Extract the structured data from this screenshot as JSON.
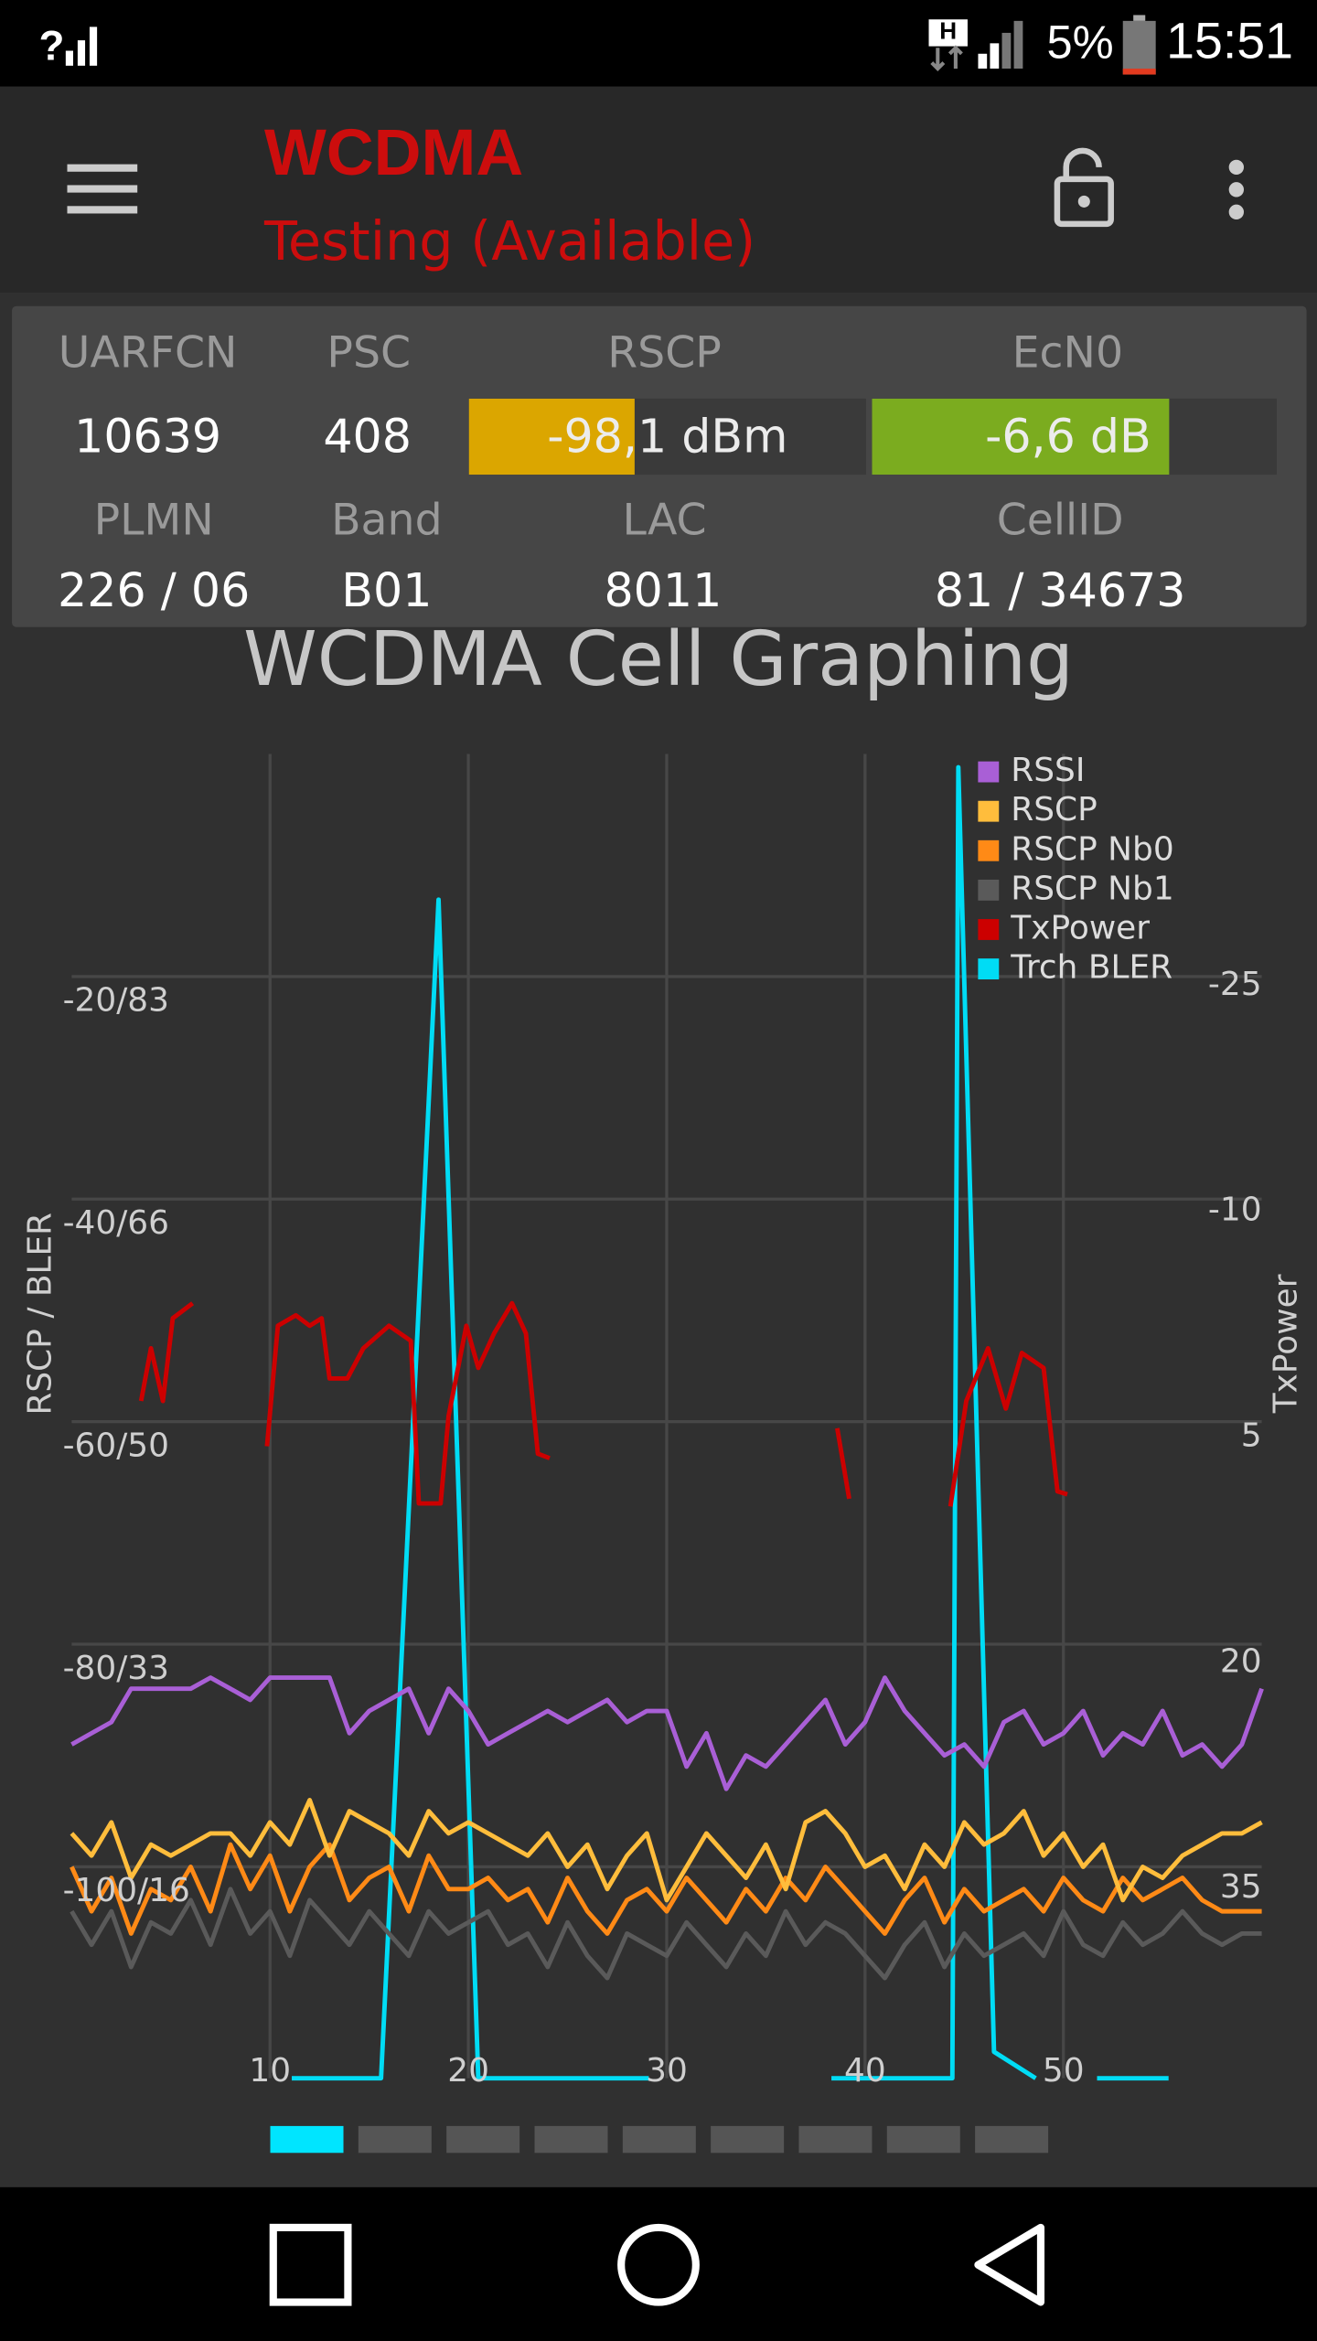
{
  "status_bar": {
    "network": "H",
    "battery": "5%",
    "time": "15:51"
  },
  "app_bar": {
    "title": "WCDMA",
    "subtitle": "Testing (Available)"
  },
  "cell_info": {
    "row1": {
      "labels": [
        "UARFCN",
        "PSC",
        "RSCP",
        "EcN0"
      ],
      "values": [
        "10639",
        "408",
        "-98,1 dBm",
        "-6,6 dB"
      ]
    },
    "row2": {
      "labels": [
        "PLMN",
        "Band",
        "LAC",
        "CellID"
      ],
      "values": [
        "226 / 06",
        "B01",
        "8011",
        "81 / 34673"
      ]
    }
  },
  "chart_data": {
    "type": "line",
    "title": "WCDMA Cell Graphing",
    "y_label": "RSCP / BLER",
    "y2_label": "TxPower",
    "x": [
      0,
      1,
      2,
      3,
      4,
      5,
      6,
      7,
      8,
      9,
      10,
      11,
      12,
      13,
      14,
      15,
      16,
      17,
      18,
      19,
      20,
      21,
      22,
      23,
      24,
      25,
      26,
      27,
      28,
      29,
      30,
      31,
      32,
      33,
      34,
      35,
      36,
      37,
      38,
      39,
      40,
      41,
      42,
      43,
      44,
      45,
      46,
      47,
      48,
      49,
      50,
      51,
      52,
      53,
      54,
      55,
      56,
      57,
      58,
      59,
      60
    ],
    "xlim": [
      0,
      60
    ],
    "xticks": [
      10,
      20,
      30,
      40,
      50
    ],
    "ylim": [
      -119,
      0
    ],
    "yticks": [
      {
        "value": -20,
        "label": "-20/83"
      },
      {
        "value": -40,
        "label": "-40/66"
      },
      {
        "value": -60,
        "label": "-60/50"
      },
      {
        "value": -80,
        "label": "-80/33"
      },
      {
        "value": -100,
        "label": "-100/16"
      }
    ],
    "y2lim": [
      48,
      -40
    ],
    "y2ticks": [
      -25,
      -10,
      5,
      20,
      35
    ],
    "bler_lim": [
      0,
      100
    ],
    "grid": true,
    "legend": "top-right",
    "series": [
      {
        "name": "RSSI",
        "color": "#a95fd6",
        "values": [
          -89,
          -88,
          -87,
          -84,
          -84,
          -84,
          -84,
          -83,
          -84,
          -85,
          -83,
          -83,
          -83,
          -83,
          -88,
          -86,
          -85,
          -84,
          -88,
          -84,
          -86,
          -89,
          -88,
          -87,
          -86,
          -87,
          -86,
          -85,
          -87,
          -86,
          -86,
          -91,
          -88,
          -93,
          -90,
          -91,
          -89,
          -87,
          -85,
          -89,
          -87,
          -83,
          -86,
          -88,
          -90,
          -89,
          -91,
          -87,
          -86,
          -89,
          -88,
          -86,
          -90,
          -88,
          -89,
          -86,
          -90,
          -89,
          -91,
          -89,
          -84
        ]
      },
      {
        "name": "RSCP",
        "color": "#ffbd3c",
        "values": [
          -97,
          -99,
          -96,
          -101,
          -98,
          -99,
          -98,
          -97,
          -97,
          -99,
          -96,
          -98,
          -94,
          -99,
          -95,
          -96,
          -97,
          -99,
          -95,
          -97,
          -96,
          -97,
          -98,
          -99,
          -97,
          -100,
          -98,
          -102,
          -99,
          -97,
          -103,
          -100,
          -97,
          -99,
          -101,
          -98,
          -102,
          -96,
          -95,
          -97,
          -100,
          -99,
          -102,
          -98,
          -100,
          -96,
          -98,
          -97,
          -95,
          -99,
          -97,
          -100,
          -98,
          -103,
          -100,
          -101,
          -99,
          -98,
          -97,
          -97,
          -96
        ]
      },
      {
        "name": "RSCP Nb0",
        "color": "#ff8a16",
        "values": [
          -100,
          -104,
          -101,
          -106,
          -102,
          -103,
          -100,
          -104,
          -98,
          -102,
          -99,
          -104,
          -100,
          -98,
          -103,
          -101,
          -100,
          -104,
          -99,
          -102,
          -102,
          -101,
          -103,
          -102,
          -105,
          -101,
          -104,
          -106,
          -103,
          -102,
          -104,
          -101,
          -103,
          -105,
          -102,
          -104,
          -101,
          -103,
          -100,
          -102,
          -104,
          -106,
          -103,
          -101,
          -105,
          -102,
          -104,
          -103,
          -102,
          -104,
          -101,
          -103,
          -104,
          -101,
          -103,
          -102,
          -101,
          -103,
          -104,
          -104,
          -104
        ]
      },
      {
        "name": "RSCP Nb1",
        "color": "#5a5a5a",
        "values": [
          -104,
          -107,
          -104,
          -109,
          -105,
          -106,
          -103,
          -107,
          -102,
          -106,
          -104,
          -108,
          -103,
          -105,
          -107,
          -104,
          -106,
          -108,
          -104,
          -106,
          -105,
          -104,
          -107,
          -106,
          -109,
          -105,
          -108,
          -110,
          -106,
          -107,
          -108,
          -105,
          -107,
          -109,
          -106,
          -108,
          -104,
          -107,
          -105,
          -106,
          -108,
          -110,
          -107,
          -105,
          -109,
          -106,
          -108,
          -107,
          -106,
          -108,
          -104,
          -107,
          -108,
          -105,
          -107,
          -106,
          -104,
          -106,
          -107,
          -106,
          -106
        ]
      },
      {
        "name": "TxPower",
        "color": "#cc0000",
        "axis": "y2",
        "x": [
          3.5,
          4.0,
          4.6,
          5.1,
          6.1,
          8,
          9.85,
          10.4,
          11.3,
          12.0,
          12.6,
          13.0,
          13.9,
          14.7,
          16.0,
          17.1,
          17.5,
          18.6,
          19.0,
          19.9,
          20.5,
          21.3,
          22.2,
          22.9,
          23.5,
          24.1,
          30,
          38.6,
          39.2,
          42,
          44.3,
          45.1,
          46.2,
          47.1,
          47.9,
          49.0,
          49.7,
          50.2
        ],
        "values": [
          3,
          -0.5,
          3,
          -2.5,
          -3.5,
          null,
          6,
          -2,
          -2.7,
          -2,
          -2.5,
          1.5,
          1.5,
          -0.5,
          -2,
          -1,
          9.8,
          9.8,
          4,
          -2,
          0.8,
          -1.5,
          -3.5,
          -1.5,
          6.5,
          6.8,
          null,
          4.8,
          9.5,
          null,
          10,
          3,
          -0.5,
          3.5,
          -0.2,
          0.8,
          9,
          9.2
        ]
      },
      {
        "name": "Trch BLER",
        "color": "#00dcf5",
        "axis": "bler",
        "x": [
          11.1,
          15.6,
          18.5,
          20.5,
          29.1,
          33,
          38.3,
          44.4,
          44.7,
          46.5,
          48.6,
          50,
          51.7,
          55.3
        ],
        "values": [
          0,
          0,
          89,
          0,
          0,
          null,
          0,
          0,
          99,
          2,
          0,
          null,
          0,
          0
        ]
      }
    ]
  }
}
